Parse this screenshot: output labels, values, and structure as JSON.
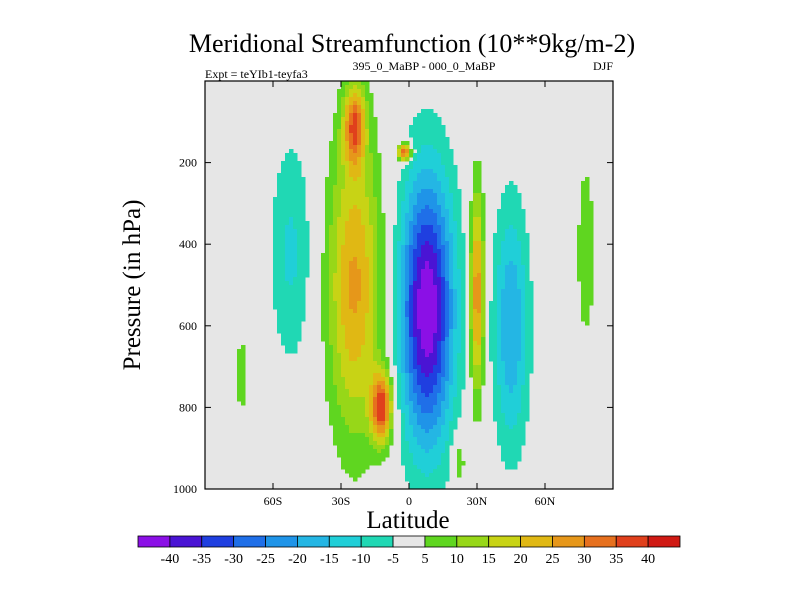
{
  "chart_data": {
    "type": "heatmap",
    "title": "Meridional Streamfunction (10**9kg/m-2)",
    "subtitle_left": "Expt = teYIb1-teyfa3",
    "subtitle_center": "395_0_MaBP - 000_0_MaBP",
    "subtitle_right": "DJF",
    "xlabel": "Latitude",
    "ylabel": "Pressure (in hPa)",
    "xlim": [
      -90,
      90
    ],
    "ylim": [
      1000,
      0
    ],
    "x_ticks": [
      {
        "value": -60,
        "label": "60S"
      },
      {
        "value": -30,
        "label": "30S"
      },
      {
        "value": 0,
        "label": "0"
      },
      {
        "value": 30,
        "label": "30N"
      },
      {
        "value": 60,
        "label": "60N"
      }
    ],
    "y_ticks": [
      {
        "value": 200,
        "label": "200"
      },
      {
        "value": 400,
        "label": "400"
      },
      {
        "value": 600,
        "label": "600"
      },
      {
        "value": 800,
        "label": "800"
      },
      {
        "value": 1000,
        "label": "1000"
      }
    ],
    "colorbar": {
      "levels": [
        -40,
        -35,
        -30,
        -25,
        -20,
        -15,
        -10,
        -5,
        5,
        10,
        15,
        20,
        25,
        30,
        35,
        40
      ],
      "labels": [
        "-40",
        "-35",
        "-30",
        "-25",
        "-20",
        "-15",
        "-10",
        "-5",
        "5",
        "10",
        "15",
        "20",
        "25",
        "30",
        "35",
        "40"
      ],
      "colors": [
        "#8b10e6",
        "#4a14d4",
        "#1f3fe0",
        "#1f6fe8",
        "#1f94e8",
        "#24b6e4",
        "#20cfd8",
        "#20d8b4",
        "#e6e6e6",
        "#5fd620",
        "#97d718",
        "#c8d315",
        "#e0b814",
        "#e6971a",
        "#e6701e",
        "#e0401c",
        "#d01a14"
      ]
    },
    "fields": [
      {
        "name": "tropical negative core",
        "lat_center": 8,
        "p_center": 560,
        "lat_halfwidth": 15,
        "p_halfwidth": 420,
        "peak": -45
      },
      {
        "name": "southern subtropical positive band",
        "lat_center": -24,
        "p_center": 500,
        "lat_halfwidth": 15,
        "p_halfwidth": 470,
        "peak": 26
      },
      {
        "name": "lower positive maximum",
        "lat_center": -12,
        "p_center": 800,
        "lat_halfwidth": 6,
        "p_halfwidth": 110,
        "peak": 37
      },
      {
        "name": "upper positive maximum",
        "lat_center": -24,
        "p_center": 110,
        "lat_halfwidth": 6,
        "p_halfwidth": 120,
        "peak": 30
      },
      {
        "name": "upper small maximum",
        "lat_center": -2,
        "p_center": 175,
        "lat_halfwidth": 4,
        "p_halfwidth": 28,
        "peak": 38
      },
      {
        "name": "northern positive band",
        "lat_center": 30,
        "p_center": 520,
        "lat_halfwidth": 4,
        "p_halfwidth": 320,
        "peak": 30
      },
      {
        "name": "northern negative band",
        "lat_center": 45,
        "p_center": 600,
        "lat_halfwidth": 10,
        "p_halfwidth": 380,
        "peak": -20
      },
      {
        "name": "southern negative band",
        "lat_center": -52,
        "p_center": 420,
        "lat_halfwidth": 12,
        "p_halfwidth": 360,
        "peak": -11
      },
      {
        "name": "near-surface positive",
        "lat_center": 22,
        "p_center": 930,
        "lat_halfwidth": 4,
        "p_halfwidth": 90,
        "peak": 10
      },
      {
        "name": "far north positive",
        "lat_center": 78,
        "p_center": 420,
        "lat_halfwidth": 6,
        "p_halfwidth": 340,
        "peak": 8
      },
      {
        "name": "far south positive",
        "lat_center": -74,
        "p_center": 720,
        "lat_halfwidth": 3,
        "p_halfwidth": 200,
        "peak": 7
      }
    ]
  }
}
